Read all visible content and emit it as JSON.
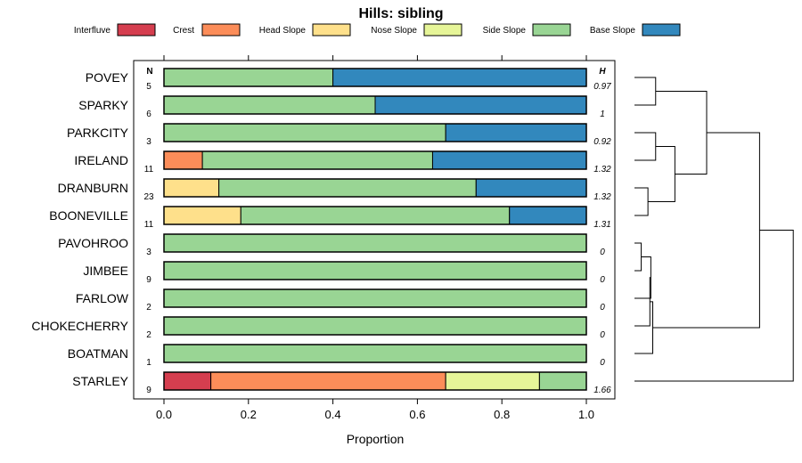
{
  "chart_data": {
    "type": "bar",
    "stacked": true,
    "orientation": "horizontal",
    "title": "Hills: sibling",
    "xlabel": "Proportion",
    "xlim": [
      0,
      1
    ],
    "x_ticks": [
      0,
      0.2,
      0.4,
      0.6,
      0.8,
      1
    ],
    "x_tick_labels": [
      "0.0",
      "0.2",
      "0.4",
      "0.6",
      "0.8",
      "1.0"
    ],
    "n_header": "N",
    "h_header": "H",
    "legend": [
      {
        "name": "Interfluve",
        "color": "#d53e4f"
      },
      {
        "name": "Crest",
        "color": "#fc8d59"
      },
      {
        "name": "Head Slope",
        "color": "#fee08b"
      },
      {
        "name": "Nose Slope",
        "color": "#e6f598"
      },
      {
        "name": "Side Slope",
        "color": "#99d594"
      },
      {
        "name": "Base Slope",
        "color": "#3288bd"
      }
    ],
    "categories": [
      "POVEY",
      "SPARKY",
      "PARKCITY",
      "IRELAND",
      "DRANBURN",
      "BOONEVILLE",
      "PAVOHROO",
      "JIMBEE",
      "FARLOW",
      "CHOKECHERRY",
      "BOATMAN",
      "STARLEY"
    ],
    "n": [
      "5",
      "6",
      "3",
      "11",
      "23",
      "11",
      "3",
      "9",
      "2",
      "2",
      "1",
      "9"
    ],
    "h": [
      "0.97",
      "1",
      "0.92",
      "1.32",
      "1.32",
      "1.31",
      "0",
      "0",
      "0",
      "0",
      "0",
      "1.66"
    ],
    "series": [
      {
        "name": "Interfluve",
        "values": [
          0,
          0,
          0,
          0,
          0,
          0,
          0,
          0,
          0,
          0,
          0,
          0.111
        ]
      },
      {
        "name": "Crest",
        "values": [
          0,
          0,
          0,
          0.091,
          0,
          0,
          0,
          0,
          0,
          0,
          0,
          0.556
        ]
      },
      {
        "name": "Head Slope",
        "values": [
          0,
          0,
          0,
          0,
          0.13,
          0.182,
          0,
          0,
          0,
          0,
          0,
          0
        ]
      },
      {
        "name": "Nose Slope",
        "values": [
          0,
          0,
          0,
          0,
          0,
          0,
          0,
          0,
          0,
          0,
          0,
          0.222
        ]
      },
      {
        "name": "Side Slope",
        "values": [
          0.4,
          0.5,
          0.667,
          0.545,
          0.609,
          0.636,
          1,
          1,
          1,
          1,
          1,
          0.111
        ]
      },
      {
        "name": "Base Slope",
        "values": [
          0.6,
          0.5,
          0.333,
          0.364,
          0.261,
          0.182,
          0,
          0,
          0,
          0,
          0,
          0
        ]
      }
    ],
    "dendrogram": {
      "leaves": [
        "POVEY",
        "SPARKY",
        "PARKCITY",
        "IRELAND",
        "DRANBURN",
        "BOONEVILLE",
        "PAVOHROO",
        "JIMBEE",
        "FARLOW",
        "CHOKECHERRY",
        "BOATMAN",
        "STARLEY"
      ],
      "merges": [
        [
          0,
          1,
          0.22
        ],
        [
          2,
          3,
          0.22
        ],
        [
          4,
          5,
          0.14
        ],
        [
          13,
          14,
          0.42
        ],
        [
          12,
          15,
          0.75
        ],
        [
          6,
          7,
          0.07
        ],
        [
          17,
          8,
          0.17
        ],
        [
          18,
          9,
          0.16
        ],
        [
          19,
          10,
          0.19
        ],
        [
          16,
          20,
          1.3
        ],
        [
          21,
          11,
          1.65
        ]
      ]
    }
  }
}
